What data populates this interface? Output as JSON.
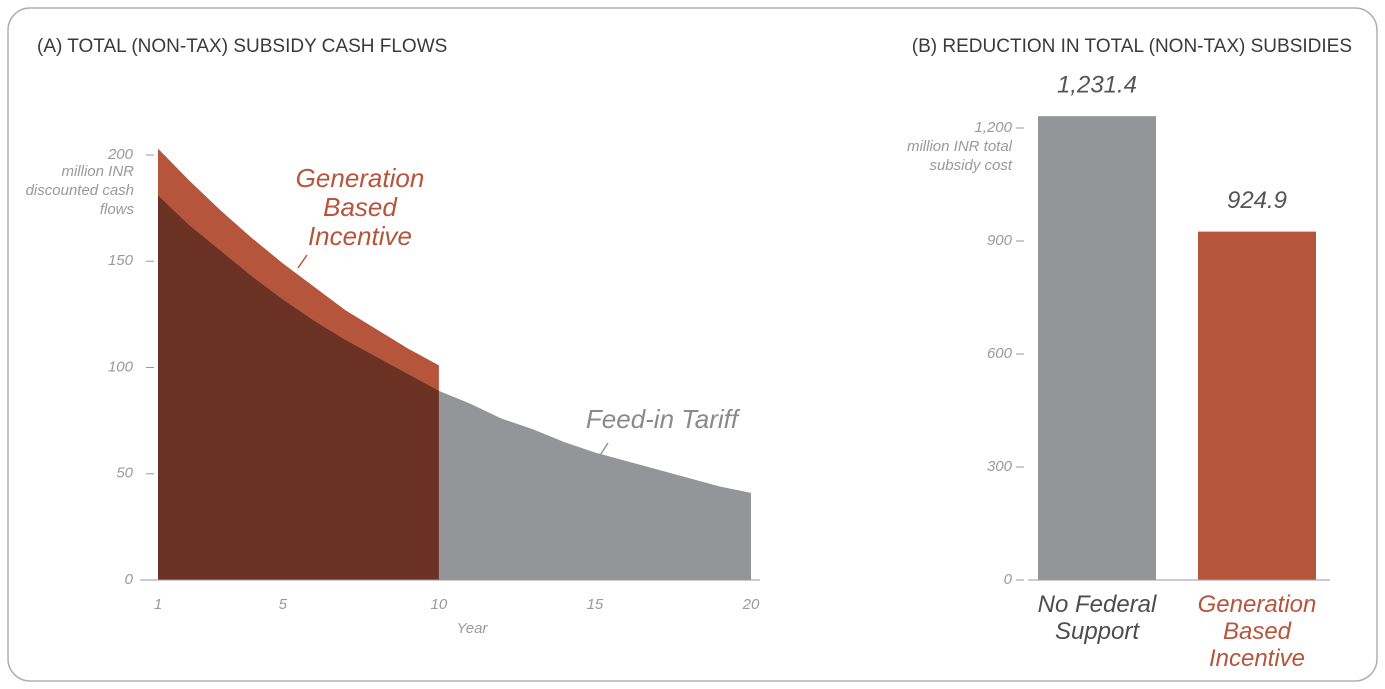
{
  "chart_data": [
    {
      "type": "area",
      "title": "(A) TOTAL (NON-TAX) SUBSIDY CASH FLOWS",
      "y_label": "million INR discounted cash flows",
      "x_label": "Year",
      "x": [
        1,
        2,
        3,
        4,
        5,
        6,
        7,
        8,
        9,
        10,
        11,
        12,
        13,
        14,
        15,
        16,
        17,
        18,
        19,
        20
      ],
      "series": [
        {
          "name": "Generation Based Incentive",
          "color": "#b5553b",
          "values": [
            203,
            188,
            174,
            161,
            149,
            138,
            127,
            118,
            109,
            101,
            null,
            null,
            null,
            null,
            null,
            null,
            null,
            null,
            null,
            null
          ]
        },
        {
          "name": "Feed-in Tariff",
          "color": "#939598",
          "values": [
            181,
            167,
            155,
            143,
            132,
            122,
            113,
            105,
            97,
            89,
            83,
            76,
            71,
            65,
            60,
            56,
            52,
            48,
            44,
            41
          ]
        }
      ],
      "overlap_color": "#6b3122",
      "xlim": [
        1,
        20
      ],
      "xticks": [
        1,
        5,
        10,
        15,
        20
      ],
      "ylim": [
        0,
        210
      ],
      "yticks": [
        0,
        50,
        100,
        150,
        200
      ]
    },
    {
      "type": "bar",
      "title": "(B) REDUCTION IN TOTAL (NON-TAX) SUBSIDIES",
      "y_label": "million INR total subsidy cost",
      "categories": [
        "No Federal Support",
        "Generation Based Incentive"
      ],
      "values": [
        1231.4,
        924.9
      ],
      "value_labels": [
        "1,231.4",
        "924.9"
      ],
      "colors": [
        "#939598",
        "#b5553b"
      ],
      "ylim": [
        0,
        1231.4
      ],
      "yticks": [
        0,
        300,
        600,
        900,
        {
          "value": 1200,
          "label": "1,200"
        }
      ]
    }
  ]
}
